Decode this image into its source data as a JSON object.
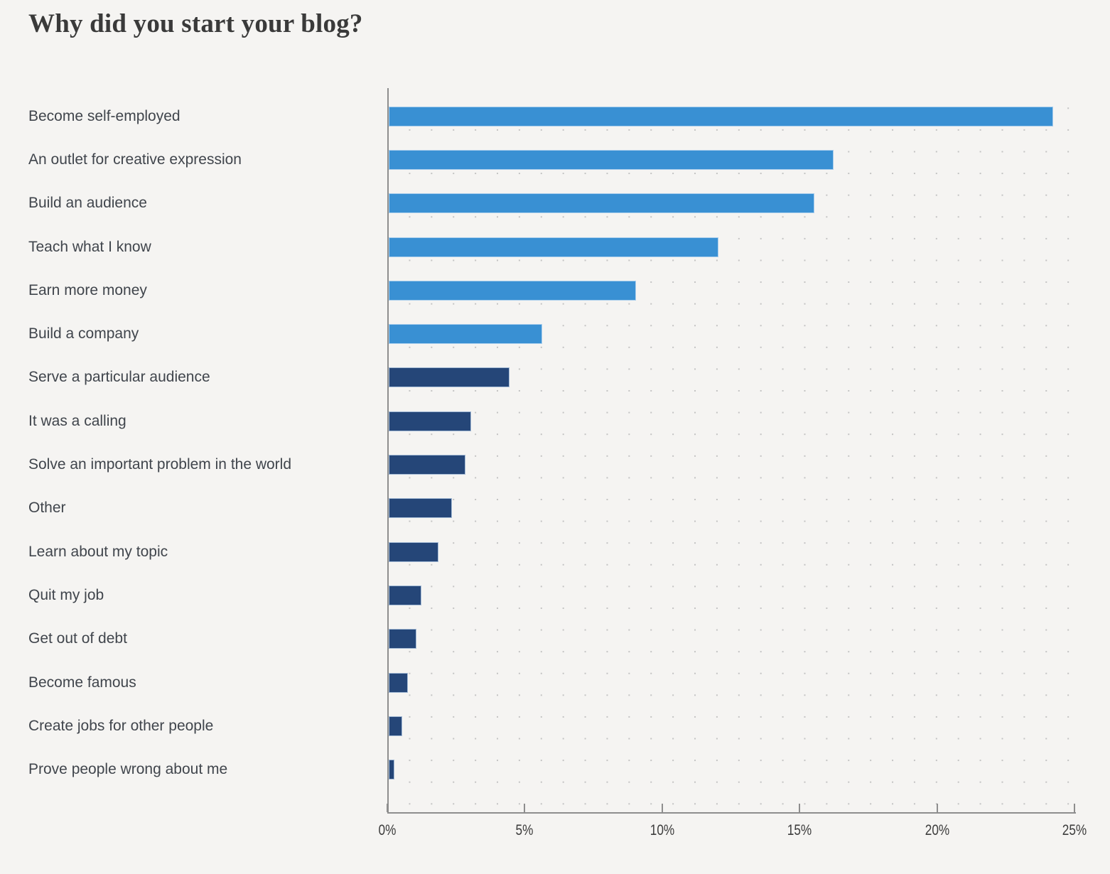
{
  "page": {
    "background_color": "#f5f4f2"
  },
  "title": "Why did you start your blog?",
  "chart_data": {
    "type": "bar",
    "orientation": "horizontal",
    "title": "Why did you start your blog?",
    "categories": [
      "Become self-employed",
      "An outlet for creative expression",
      "Build an audience",
      "Teach what I know",
      "Earn more money",
      "Build a company",
      "Serve a particular audience",
      "It was a calling",
      "Solve an important problem in the world",
      "Other",
      "Learn about my topic",
      "Quit my job",
      "Get out of debt",
      "Become famous",
      "Create jobs for other people",
      "Prove people wrong about me"
    ],
    "values": [
      24.2,
      16.2,
      15.5,
      12.0,
      9.0,
      5.6,
      4.4,
      3.0,
      2.8,
      2.3,
      1.8,
      1.2,
      1.0,
      0.7,
      0.5,
      0.2
    ],
    "unit": "%",
    "bar_colors": [
      "#3990d3",
      "#3990d3",
      "#3990d3",
      "#3990d3",
      "#3990d3",
      "#3990d3",
      "#254678",
      "#254678",
      "#254678",
      "#254678",
      "#254678",
      "#254678",
      "#254678",
      "#254678",
      "#254678",
      "#254678"
    ],
    "color_legend": {
      "light_blue": "#3990d3",
      "dark_navy": "#254678"
    },
    "xlim": [
      0,
      25
    ],
    "x_ticks": [
      {
        "value": 0,
        "label": "0%"
      },
      {
        "value": 5,
        "label": "5%"
      },
      {
        "value": 10,
        "label": "10%"
      },
      {
        "value": 15,
        "label": "15%"
      },
      {
        "value": 20,
        "label": "20%"
      },
      {
        "value": 25,
        "label": "25%"
      }
    ],
    "grid": "dotted",
    "legend": "none",
    "axis_color": "#8e8e8e",
    "grid_dot_color": "#c3c3c3",
    "label_text_color": "#40454c"
  }
}
